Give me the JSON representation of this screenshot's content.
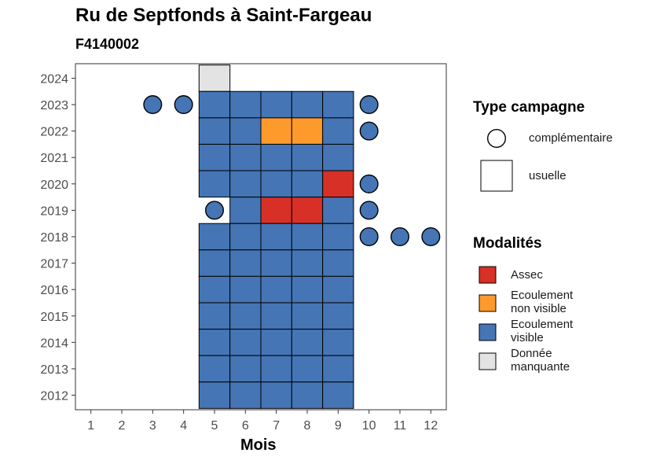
{
  "chart_data": {
    "type": "heatmap",
    "title": "Ru de Septfonds à Saint-Fargeau",
    "subtitle": "F4140002",
    "xlabel": "Mois",
    "ylabel": "",
    "x_ticks": [
      1,
      2,
      3,
      4,
      5,
      6,
      7,
      8,
      9,
      10,
      11,
      12
    ],
    "y_ticks": [
      2012,
      2013,
      2014,
      2015,
      2016,
      2017,
      2018,
      2019,
      2020,
      2021,
      2022,
      2023,
      2024
    ],
    "xlim": [
      0.5,
      12.5
    ],
    "ylim": [
      2011.45,
      2024.55
    ],
    "grid": false,
    "legend_type": {
      "title": "Type campagne",
      "items": [
        {
          "label": "complémentaire",
          "shape": "circle"
        },
        {
          "label": "usuelle",
          "shape": "square"
        }
      ]
    },
    "legend_modalites": {
      "title": "Modalités",
      "items": [
        {
          "key": "assec",
          "line1": "Assec",
          "line2": "",
          "color": "#d73027"
        },
        {
          "key": "nonvisible",
          "line1": "Ecoulement",
          "line2": "non visible",
          "color": "#fd9a2b"
        },
        {
          "key": "visible",
          "line1": "Ecoulement",
          "line2": "visible",
          "color": "#4575b4"
        },
        {
          "key": "manquante",
          "line1": "Donnée",
          "line2": "manquante",
          "color": "#e3e3e3"
        }
      ]
    },
    "usuelle": [
      {
        "month": 5,
        "year": 2024,
        "modalite": "manquante"
      },
      {
        "month": 5,
        "year": 2023,
        "modalite": "visible"
      },
      {
        "month": 6,
        "year": 2023,
        "modalite": "visible"
      },
      {
        "month": 7,
        "year": 2023,
        "modalite": "visible"
      },
      {
        "month": 8,
        "year": 2023,
        "modalite": "visible"
      },
      {
        "month": 9,
        "year": 2023,
        "modalite": "visible"
      },
      {
        "month": 5,
        "year": 2022,
        "modalite": "visible"
      },
      {
        "month": 6,
        "year": 2022,
        "modalite": "visible"
      },
      {
        "month": 7,
        "year": 2022,
        "modalite": "nonvisible"
      },
      {
        "month": 8,
        "year": 2022,
        "modalite": "nonvisible"
      },
      {
        "month": 9,
        "year": 2022,
        "modalite": "visible"
      },
      {
        "month": 5,
        "year": 2021,
        "modalite": "visible"
      },
      {
        "month": 6,
        "year": 2021,
        "modalite": "visible"
      },
      {
        "month": 7,
        "year": 2021,
        "modalite": "visible"
      },
      {
        "month": 8,
        "year": 2021,
        "modalite": "visible"
      },
      {
        "month": 9,
        "year": 2021,
        "modalite": "visible"
      },
      {
        "month": 5,
        "year": 2020,
        "modalite": "visible"
      },
      {
        "month": 6,
        "year": 2020,
        "modalite": "visible"
      },
      {
        "month": 7,
        "year": 2020,
        "modalite": "visible"
      },
      {
        "month": 8,
        "year": 2020,
        "modalite": "visible"
      },
      {
        "month": 9,
        "year": 2020,
        "modalite": "assec"
      },
      {
        "month": 6,
        "year": 2019,
        "modalite": "visible"
      },
      {
        "month": 7,
        "year": 2019,
        "modalite": "assec"
      },
      {
        "month": 8,
        "year": 2019,
        "modalite": "assec"
      },
      {
        "month": 9,
        "year": 2019,
        "modalite": "visible"
      },
      {
        "month": 5,
        "year": 2018,
        "modalite": "visible"
      },
      {
        "month": 6,
        "year": 2018,
        "modalite": "visible"
      },
      {
        "month": 7,
        "year": 2018,
        "modalite": "visible"
      },
      {
        "month": 8,
        "year": 2018,
        "modalite": "visible"
      },
      {
        "month": 9,
        "year": 2018,
        "modalite": "visible"
      },
      {
        "month": 5,
        "year": 2017,
        "modalite": "visible"
      },
      {
        "month": 6,
        "year": 2017,
        "modalite": "visible"
      },
      {
        "month": 7,
        "year": 2017,
        "modalite": "visible"
      },
      {
        "month": 8,
        "year": 2017,
        "modalite": "visible"
      },
      {
        "month": 9,
        "year": 2017,
        "modalite": "visible"
      },
      {
        "month": 5,
        "year": 2016,
        "modalite": "visible"
      },
      {
        "month": 6,
        "year": 2016,
        "modalite": "visible"
      },
      {
        "month": 7,
        "year": 2016,
        "modalite": "visible"
      },
      {
        "month": 8,
        "year": 2016,
        "modalite": "visible"
      },
      {
        "month": 9,
        "year": 2016,
        "modalite": "visible"
      },
      {
        "month": 5,
        "year": 2015,
        "modalite": "visible"
      },
      {
        "month": 6,
        "year": 2015,
        "modalite": "visible"
      },
      {
        "month": 7,
        "year": 2015,
        "modalite": "visible"
      },
      {
        "month": 8,
        "year": 2015,
        "modalite": "visible"
      },
      {
        "month": 9,
        "year": 2015,
        "modalite": "visible"
      },
      {
        "month": 5,
        "year": 2014,
        "modalite": "visible"
      },
      {
        "month": 6,
        "year": 2014,
        "modalite": "visible"
      },
      {
        "month": 7,
        "year": 2014,
        "modalite": "visible"
      },
      {
        "month": 8,
        "year": 2014,
        "modalite": "visible"
      },
      {
        "month": 9,
        "year": 2014,
        "modalite": "visible"
      },
      {
        "month": 5,
        "year": 2013,
        "modalite": "visible"
      },
      {
        "month": 6,
        "year": 2013,
        "modalite": "visible"
      },
      {
        "month": 7,
        "year": 2013,
        "modalite": "visible"
      },
      {
        "month": 8,
        "year": 2013,
        "modalite": "visible"
      },
      {
        "month": 9,
        "year": 2013,
        "modalite": "visible"
      },
      {
        "month": 5,
        "year": 2012,
        "modalite": "visible"
      },
      {
        "month": 6,
        "year": 2012,
        "modalite": "visible"
      },
      {
        "month": 7,
        "year": 2012,
        "modalite": "visible"
      },
      {
        "month": 8,
        "year": 2012,
        "modalite": "visible"
      },
      {
        "month": 9,
        "year": 2012,
        "modalite": "visible"
      }
    ],
    "complementaire": [
      {
        "month": 3,
        "year": 2023,
        "modalite": "visible"
      },
      {
        "month": 4,
        "year": 2023,
        "modalite": "visible"
      },
      {
        "month": 10,
        "year": 2023,
        "modalite": "visible"
      },
      {
        "month": 10,
        "year": 2022,
        "modalite": "visible"
      },
      {
        "month": 10,
        "year": 2020,
        "modalite": "visible"
      },
      {
        "month": 5,
        "year": 2019,
        "modalite": "visible"
      },
      {
        "month": 10,
        "year": 2019,
        "modalite": "visible"
      },
      {
        "month": 10,
        "year": 2018,
        "modalite": "visible"
      },
      {
        "month": 11,
        "year": 2018,
        "modalite": "visible"
      },
      {
        "month": 12,
        "year": 2018,
        "modalite": "visible"
      }
    ]
  }
}
